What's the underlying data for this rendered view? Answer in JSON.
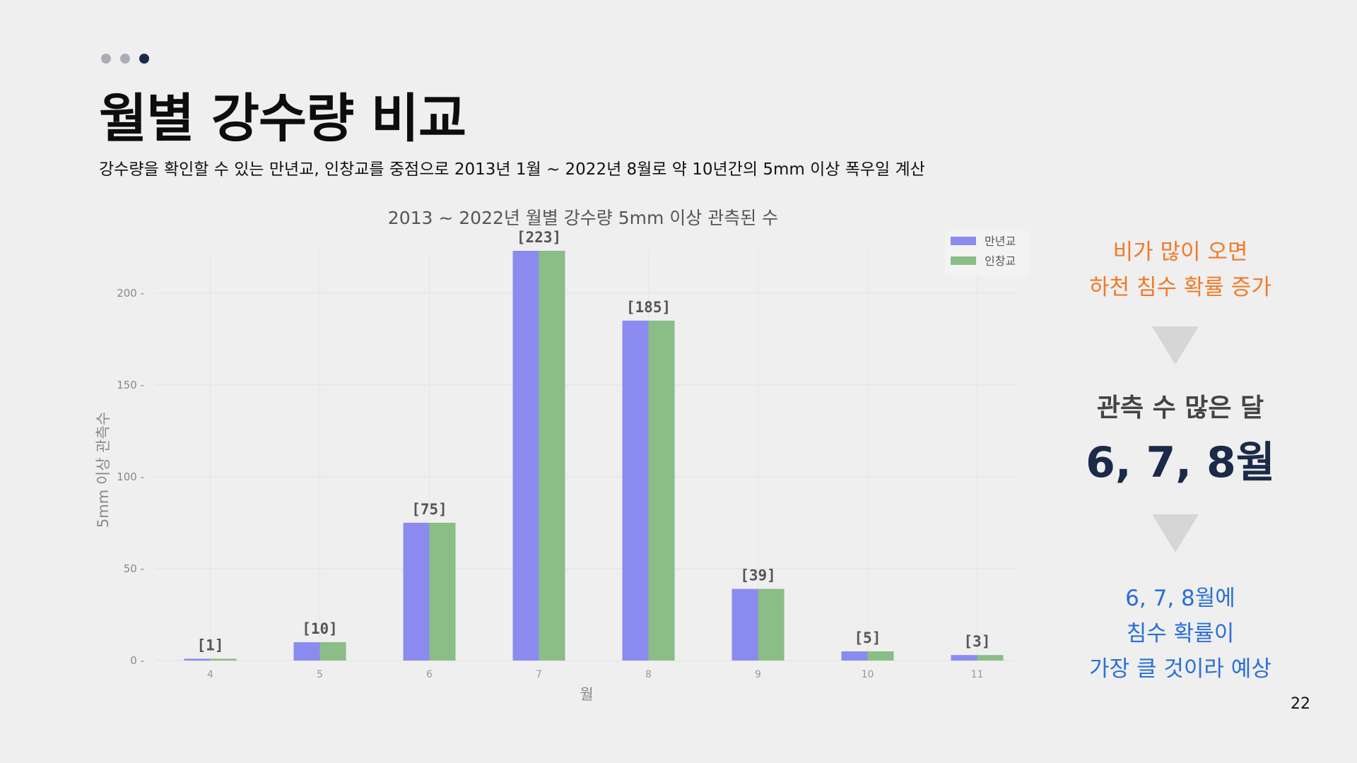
{
  "slide": {
    "title": "월별 강수량 비교",
    "subtitle": "강수량을 확인할 수 있는 만년교, 인창교를 중점으로 2013년 1월 ~ 2022년 8월로 약 10년간의 5mm 이상 폭우일 계산",
    "page_number": "22",
    "progress_dots": 3,
    "active_dot": 3
  },
  "side": {
    "orange_line1": "비가 많이 오면",
    "orange_line2": "하천 침수 확률 증가",
    "count_label": "관측 수 많은 달",
    "months": "6, 7, 8월",
    "blue_line1": "6, 7, 8월에",
    "blue_line2": "침수 확률이",
    "blue_line3": "가장 클 것이라 예상"
  },
  "colors": {
    "series1": "#8b8bef",
    "series2": "#8bbd87",
    "orange": "#f07a28",
    "navy": "#1b2a49",
    "blue": "#2a6fd6"
  },
  "chart_data": {
    "type": "bar",
    "title": "2013 ~ 2022년 월별 강수량 5mm 이상 관측된 수",
    "xlabel": "월",
    "ylabel": "5mm 이상 관측수",
    "categories": [
      "4",
      "5",
      "6",
      "7",
      "8",
      "9",
      "10",
      "11"
    ],
    "series": [
      {
        "name": "만년교",
        "values": [
          1,
          10,
          75,
          223,
          185,
          39,
          5,
          3
        ]
      },
      {
        "name": "인창교",
        "values": [
          1,
          10,
          75,
          223,
          185,
          39,
          5,
          3
        ]
      }
    ],
    "data_labels": [
      "[1]",
      "[10]",
      "[75]",
      "[223]",
      "[185]",
      "[39]",
      "[5]",
      "[3]"
    ],
    "yticks": [
      0,
      50,
      100,
      150,
      200
    ],
    "ylim": [
      0,
      223
    ],
    "grid": true,
    "legend_position": "top-right"
  }
}
